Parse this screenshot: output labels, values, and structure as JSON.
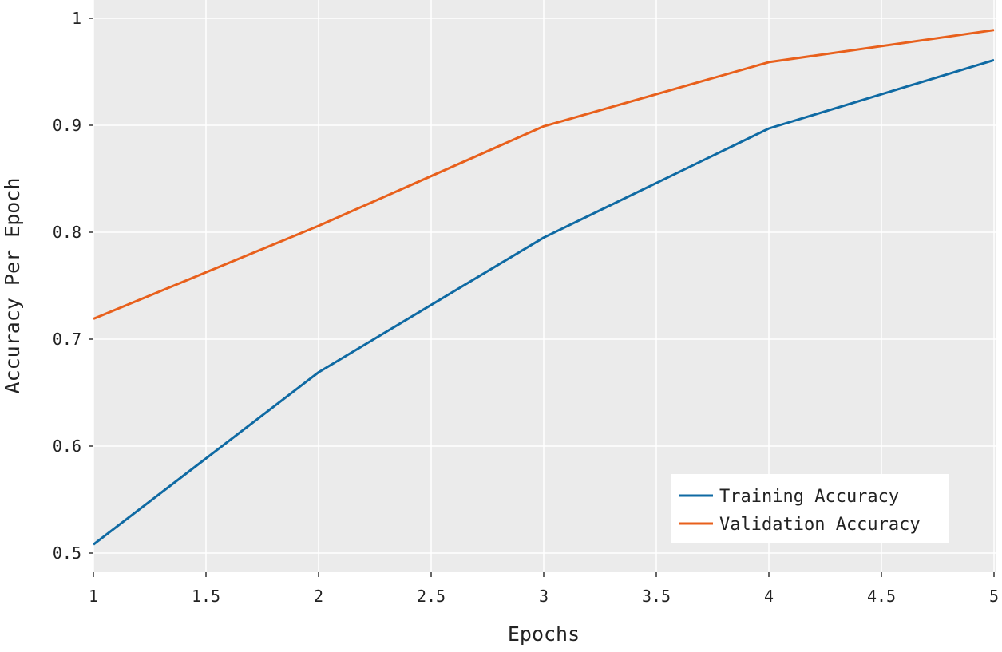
{
  "chart_data": {
    "type": "line",
    "title": "",
    "xlabel": "Epochs",
    "ylabel": "Accuracy Per Epoch",
    "x": [
      1,
      2,
      3,
      4,
      5
    ],
    "xlim": [
      1,
      5
    ],
    "ylim": [
      0.5,
      1.0
    ],
    "xticks": [
      1,
      1.5,
      2,
      2.5,
      3,
      3.5,
      4,
      4.5,
      5
    ],
    "xtick_labels": [
      "1",
      "1.5",
      "2",
      "2.5",
      "3",
      "3.5",
      "4",
      "4.5",
      "5"
    ],
    "yticks": [
      0.5,
      0.6,
      0.7,
      0.8,
      0.9,
      1.0
    ],
    "ytick_labels": [
      "0.5",
      "0.6",
      "0.7",
      "0.8",
      "0.9",
      "1"
    ],
    "grid": true,
    "legend_position": "bottom-right",
    "series": [
      {
        "name": "Training Accuracy",
        "color": "#0f6aa3",
        "values": [
          0.508,
          0.669,
          0.795,
          0.897,
          0.961
        ]
      },
      {
        "name": "Validation Accuracy",
        "color": "#e8601c",
        "values": [
          0.719,
          0.806,
          0.899,
          0.959,
          0.989
        ]
      }
    ]
  }
}
